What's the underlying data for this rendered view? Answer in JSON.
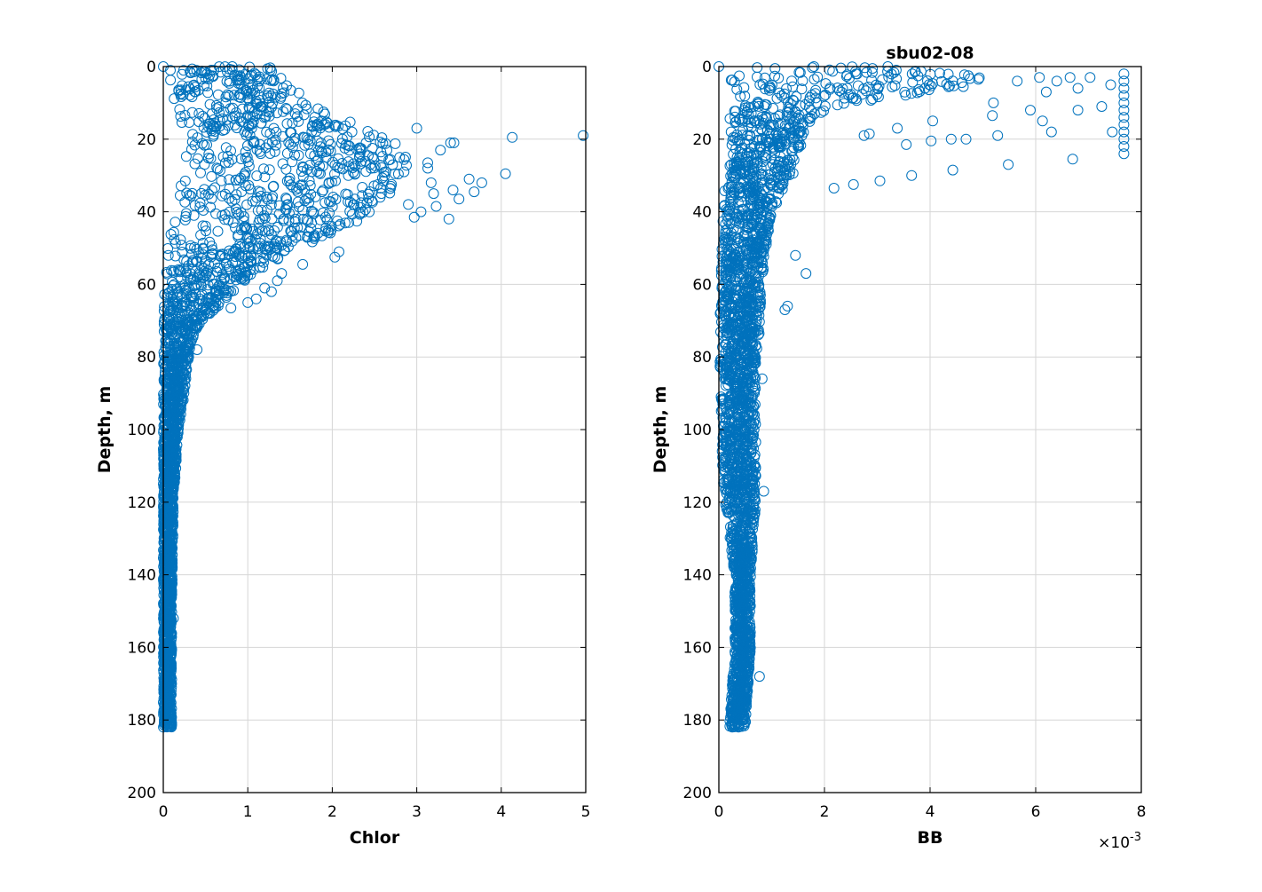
{
  "figure": {
    "background": "#ffffff",
    "marker_color": "#0072bd",
    "grid_color": "#d6d6d6"
  },
  "chart_data": [
    {
      "type": "scatter",
      "title": "",
      "xlabel": "Chlor",
      "ylabel": "Depth, m",
      "xlim": [
        0,
        5
      ],
      "ylim": [
        0,
        200
      ],
      "y_reversed": true,
      "grid": true,
      "marker": "open-circle",
      "xticks": [
        0,
        1,
        2,
        3,
        4,
        5
      ],
      "xtick_labels": [
        "0",
        "1",
        "2",
        "3",
        "4",
        "5"
      ],
      "yticks": [
        0,
        20,
        40,
        60,
        80,
        100,
        120,
        140,
        160,
        180,
        200
      ],
      "ytick_labels": [
        "0",
        "20",
        "40",
        "60",
        "80",
        "100",
        "120",
        "140",
        "160",
        "180",
        "200"
      ],
      "x_exponent_label": "",
      "profile": [
        {
          "depth": 0,
          "min": 0.05,
          "max": 1.3
        },
        {
          "depth": 5,
          "min": 0.05,
          "max": 1.5
        },
        {
          "depth": 10,
          "min": 0.1,
          "max": 1.75
        },
        {
          "depth": 15,
          "min": 0.15,
          "max": 2.2
        },
        {
          "depth": 20,
          "min": 0.2,
          "max": 2.7
        },
        {
          "depth": 25,
          "min": 0.2,
          "max": 2.9
        },
        {
          "depth": 30,
          "min": 0.2,
          "max": 2.9
        },
        {
          "depth": 35,
          "min": 0.15,
          "max": 2.7
        },
        {
          "depth": 40,
          "min": 0.12,
          "max": 2.5
        },
        {
          "depth": 45,
          "min": 0.08,
          "max": 2.1
        },
        {
          "depth": 50,
          "min": 0.05,
          "max": 1.6
        },
        {
          "depth": 55,
          "min": 0.03,
          "max": 1.2
        },
        {
          "depth": 60,
          "min": 0.02,
          "max": 0.9
        },
        {
          "depth": 65,
          "min": 0.01,
          "max": 0.7
        },
        {
          "depth": 70,
          "min": 0.0,
          "max": 0.45
        },
        {
          "depth": 75,
          "min": 0.0,
          "max": 0.35
        },
        {
          "depth": 80,
          "min": 0.0,
          "max": 0.3
        },
        {
          "depth": 90,
          "min": 0.0,
          "max": 0.25
        },
        {
          "depth": 100,
          "min": 0.0,
          "max": 0.18
        },
        {
          "depth": 120,
          "min": 0.0,
          "max": 0.12
        },
        {
          "depth": 150,
          "min": 0.0,
          "max": 0.1
        },
        {
          "depth": 182,
          "min": 0.0,
          "max": 0.1
        }
      ],
      "outliers": [
        [
          4.97,
          19
        ],
        [
          4.13,
          19.5
        ],
        [
          4.05,
          29.5
        ],
        [
          3.77,
          32
        ],
        [
          3.62,
          31
        ],
        [
          3.68,
          34.5
        ],
        [
          3.5,
          36.5
        ],
        [
          3.43,
          34
        ],
        [
          3.38,
          42
        ],
        [
          3.23,
          38.5
        ],
        [
          3.2,
          35
        ],
        [
          3.17,
          32
        ],
        [
          3.13,
          26.5
        ],
        [
          3.0,
          17
        ],
        [
          3.4,
          21
        ],
        [
          3.44,
          21
        ],
        [
          3.28,
          23
        ],
        [
          3.13,
          28
        ],
        [
          3.05,
          40
        ],
        [
          2.97,
          41.5
        ],
        [
          2.9,
          38
        ],
        [
          2.85,
          29
        ],
        [
          2.45,
          27
        ],
        [
          2.4,
          21
        ],
        [
          2.03,
          52.5
        ],
        [
          2.08,
          51
        ],
        [
          1.65,
          54.5
        ],
        [
          1.4,
          57
        ],
        [
          1.28,
          62
        ],
        [
          1.1,
          64
        ],
        [
          1.35,
          59
        ],
        [
          1.2,
          61
        ],
        [
          1.0,
          65
        ],
        [
          0.8,
          66.5
        ],
        [
          0.55,
          68
        ],
        [
          0.4,
          78
        ],
        [
          0.3,
          80
        ],
        [
          0.12,
          152
        ],
        [
          0.0,
          0
        ],
        [
          0.6,
          1
        ]
      ]
    },
    {
      "type": "scatter",
      "title": "sbu02-08",
      "xlabel": "BB",
      "ylabel": "Depth, m",
      "xlim": [
        0,
        0.008
      ],
      "ylim": [
        0,
        200
      ],
      "y_reversed": true,
      "grid": true,
      "marker": "open-circle",
      "xticks": [
        0,
        0.002,
        0.004,
        0.006,
        0.008
      ],
      "xtick_labels": [
        "0",
        "2",
        "4",
        "6",
        "8"
      ],
      "yticks": [
        0,
        20,
        40,
        60,
        80,
        100,
        120,
        140,
        160,
        180,
        200
      ],
      "ytick_labels": [
        "0",
        "20",
        "40",
        "60",
        "80",
        "100",
        "120",
        "140",
        "160",
        "180",
        "200"
      ],
      "x_exponent_label": "×10",
      "x_exponent_power": "-3",
      "profile": [
        {
          "depth": 0,
          "min": 0.0002,
          "max": 0.0025
        },
        {
          "depth": 3,
          "min": 0.0002,
          "max": 0.0055
        },
        {
          "depth": 6,
          "min": 0.0002,
          "max": 0.0045
        },
        {
          "depth": 9,
          "min": 0.0002,
          "max": 0.003
        },
        {
          "depth": 12,
          "min": 0.0002,
          "max": 0.002
        },
        {
          "depth": 16,
          "min": 0.0002,
          "max": 0.0017
        },
        {
          "depth": 20,
          "min": 0.0002,
          "max": 0.0016
        },
        {
          "depth": 25,
          "min": 0.0002,
          "max": 0.0015
        },
        {
          "depth": 30,
          "min": 0.00015,
          "max": 0.0014
        },
        {
          "depth": 35,
          "min": 0.0001,
          "max": 0.0012
        },
        {
          "depth": 40,
          "min": 8e-05,
          "max": 0.001
        },
        {
          "depth": 50,
          "min": 5e-05,
          "max": 0.0009
        },
        {
          "depth": 60,
          "min": 3e-05,
          "max": 0.0008
        },
        {
          "depth": 70,
          "min": 2e-05,
          "max": 0.0008
        },
        {
          "depth": 80,
          "min": 2e-05,
          "max": 0.0007
        },
        {
          "depth": 100,
          "min": 2e-05,
          "max": 0.0007
        },
        {
          "depth": 120,
          "min": 0.0001,
          "max": 0.0007
        },
        {
          "depth": 140,
          "min": 0.0003,
          "max": 0.0006
        },
        {
          "depth": 160,
          "min": 0.0003,
          "max": 0.0006
        },
        {
          "depth": 182,
          "min": 0.0002,
          "max": 0.0005
        }
      ],
      "outliers": [
        [
          0.00767,
          2
        ],
        [
          0.00767,
          4
        ],
        [
          0.00767,
          6
        ],
        [
          0.00767,
          8
        ],
        [
          0.00767,
          10
        ],
        [
          0.00767,
          12
        ],
        [
          0.00767,
          14
        ],
        [
          0.00767,
          16
        ],
        [
          0.00767,
          18
        ],
        [
          0.00767,
          20
        ],
        [
          0.00767,
          22
        ],
        [
          0.00767,
          24
        ],
        [
          0.00742,
          5
        ],
        [
          0.00725,
          11
        ],
        [
          0.00745,
          18
        ],
        [
          0.00703,
          3
        ],
        [
          0.0068,
          6
        ],
        [
          0.0068,
          12
        ],
        [
          0.0067,
          25.5
        ],
        [
          0.00665,
          3
        ],
        [
          0.0064,
          4
        ],
        [
          0.0062,
          7
        ],
        [
          0.00613,
          15
        ],
        [
          0.0063,
          18
        ],
        [
          0.00607,
          3
        ],
        [
          0.0059,
          12
        ],
        [
          0.00565,
          4
        ],
        [
          0.0052,
          10
        ],
        [
          0.00518,
          13.5
        ],
        [
          0.00548,
          27
        ],
        [
          0.00528,
          19
        ],
        [
          0.00468,
          20
        ],
        [
          0.0044,
          20
        ],
        [
          0.00443,
          28.5
        ],
        [
          0.00405,
          15
        ],
        [
          0.00402,
          20.5
        ],
        [
          0.00365,
          30
        ],
        [
          0.00355,
          21.5
        ],
        [
          0.00338,
          17
        ],
        [
          0.00305,
          31.5
        ],
        [
          0.00285,
          18.5
        ],
        [
          0.00275,
          19
        ],
        [
          0.00255,
          32.5
        ],
        [
          0.00218,
          33.5
        ],
        [
          0.00165,
          57
        ],
        [
          0.0013,
          66
        ],
        [
          0.00125,
          67
        ],
        [
          0.00145,
          52
        ],
        [
          0.00082,
          86
        ],
        [
          0.00085,
          117
        ],
        [
          0.00077,
          168
        ],
        [
          0.0,
          0
        ],
        [
          0.0018,
          0
        ],
        [
          0.0032,
          0
        ]
      ]
    }
  ]
}
